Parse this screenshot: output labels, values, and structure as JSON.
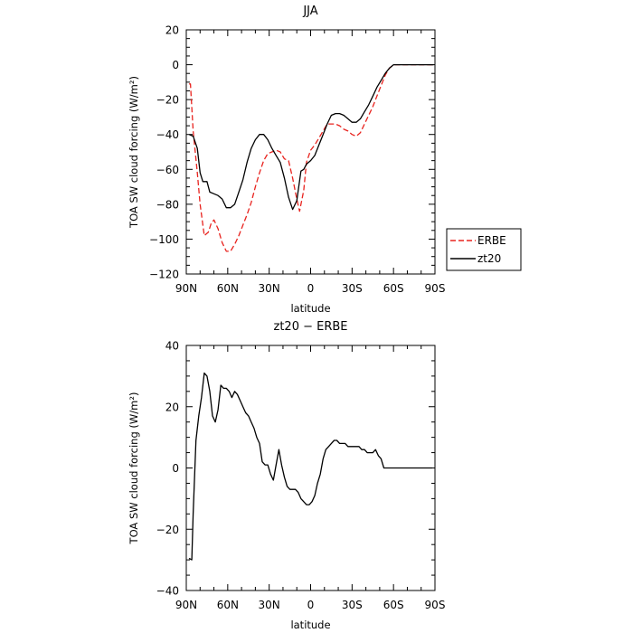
{
  "chart_data": [
    {
      "type": "line",
      "title": "JJA",
      "xlabel": "latitude",
      "ylabel": "TOA SW cloud forcing (W/m²)",
      "xlim": [
        90,
        -90
      ],
      "ylim": [
        -120,
        20
      ],
      "xticks": [
        90,
        60,
        30,
        0,
        -30,
        -60,
        -90
      ],
      "xtick_labels": [
        "90N",
        "60N",
        "30N",
        "0",
        "30S",
        "60S",
        "90S"
      ],
      "yticks": [
        -120,
        -100,
        -80,
        -60,
        -40,
        -20,
        0,
        20
      ],
      "ytick_labels": [
        "−120",
        "−100",
        "−80",
        "−60",
        "−40",
        "−20",
        "0",
        "20"
      ],
      "grid": false,
      "legend": "right",
      "series": [
        {
          "name": "ERBE",
          "color": "#e8231e",
          "dash": "dashed",
          "x": [
            88,
            87,
            85,
            82,
            80,
            77,
            74,
            72,
            70,
            67,
            64,
            61,
            58,
            55,
            52,
            49,
            46,
            43,
            40,
            37,
            34,
            31,
            28,
            25,
            22,
            19,
            16,
            13,
            10,
            8,
            5,
            3,
            0,
            -3,
            -6,
            -9,
            -12,
            -15,
            -18,
            -21,
            -24,
            -27,
            -30,
            -33,
            -36,
            -39,
            -42,
            -45,
            -48,
            -51,
            -54,
            -57,
            -60,
            -63,
            -66,
            -69,
            -72,
            -75,
            -78,
            -81,
            -84,
            -87,
            -89
          ],
          "y": [
            -11,
            -11,
            -38,
            -62,
            -80,
            -98,
            -96,
            -91,
            -89,
            -94,
            -102,
            -107,
            -107,
            -103,
            -98,
            -92,
            -86,
            -79,
            -70,
            -62,
            -55,
            -51,
            -50,
            -49,
            -50,
            -54,
            -55,
            -65,
            -77,
            -84,
            -72,
            -56,
            -49,
            -46,
            -42,
            -38,
            -34,
            -34,
            -34,
            -35,
            -37,
            -38,
            -40,
            -41,
            -39,
            -34,
            -29,
            -24,
            -18,
            -12,
            -6,
            -2,
            0,
            0,
            0,
            0,
            0,
            0,
            0,
            0,
            0,
            0,
            0
          ]
        },
        {
          "name": "zt20",
          "color": "#000000",
          "dash": "solid",
          "x": [
            88,
            85,
            82,
            80,
            78,
            75,
            73,
            70,
            67,
            64,
            61,
            58,
            55,
            52,
            49,
            46,
            43,
            40,
            37,
            34,
            31,
            28,
            25,
            22,
            19,
            16,
            13,
            10,
            7,
            5,
            3,
            0,
            -3,
            -6,
            -9,
            -12,
            -15,
            -18,
            -21,
            -24,
            -27,
            -30,
            -33,
            -36,
            -39,
            -42,
            -45,
            -48,
            -51,
            -54,
            -57,
            -60,
            -63,
            -66,
            -69,
            -72,
            -75,
            -78,
            -81,
            -84,
            -87,
            -89
          ],
          "y": [
            -40,
            -41,
            -48,
            -62,
            -67,
            -67,
            -73,
            -74,
            -75,
            -77,
            -82,
            -82,
            -80,
            -73,
            -66,
            -56,
            -48,
            -43,
            -40,
            -40,
            -43,
            -48,
            -52,
            -56,
            -65,
            -76,
            -83,
            -78,
            -61,
            -60,
            -57,
            -55,
            -52,
            -46,
            -40,
            -34,
            -29,
            -28,
            -28,
            -29,
            -31,
            -33,
            -33,
            -31,
            -27,
            -23,
            -18,
            -13,
            -9,
            -5,
            -2,
            0,
            0,
            0,
            0,
            0,
            0,
            0,
            0,
            0,
            0,
            0
          ]
        }
      ]
    },
    {
      "type": "line",
      "title": "zt20 − ERBE",
      "xlabel": "latitude",
      "ylabel": "TOA SW cloud forcing (W/m²)",
      "xlim": [
        90,
        -90
      ],
      "ylim": [
        -40,
        40
      ],
      "xticks": [
        90,
        60,
        30,
        0,
        -30,
        -60,
        -90
      ],
      "xtick_labels": [
        "90N",
        "60N",
        "30N",
        "0",
        "30S",
        "60S",
        "90S"
      ],
      "yticks": [
        -40,
        -20,
        0,
        20,
        40
      ],
      "ytick_labels": [
        "−40",
        "−20",
        "0",
        "20",
        "40"
      ],
      "grid": false,
      "series": [
        {
          "color": "#000000",
          "dash": "solid",
          "x": [
            88,
            86,
            85,
            83,
            81,
            79,
            77,
            75,
            73,
            71,
            69,
            67,
            65,
            63,
            61,
            59,
            57,
            55,
            53,
            51,
            49,
            47,
            45,
            43,
            41,
            39,
            37,
            35,
            33,
            31,
            29,
            27,
            25,
            23,
            21,
            19,
            17,
            15,
            13,
            11,
            9,
            7,
            5,
            3,
            1,
            -1,
            -3,
            -5,
            -7,
            -9,
            -11,
            -13,
            -15,
            -17,
            -19,
            -21,
            -23,
            -25,
            -27,
            -29,
            -31,
            -33,
            -35,
            -37,
            -39,
            -41,
            -43,
            -45,
            -47,
            -49,
            -51,
            -53,
            -55,
            -57,
            -59,
            -61,
            -63,
            -65,
            -67,
            -70,
            -73,
            -76,
            -79,
            -82,
            -85,
            -88
          ],
          "y": [
            -29.5,
            -30,
            -15,
            9,
            17,
            23,
            31,
            30,
            25,
            17,
            15,
            19,
            27,
            26,
            26,
            25,
            23,
            25,
            24,
            22,
            20,
            18,
            17,
            15,
            13,
            10,
            8,
            2,
            1,
            1,
            -2,
            -4,
            1,
            6,
            1,
            -3,
            -6,
            -7,
            -7,
            -7,
            -8,
            -10,
            -11,
            -12,
            -12,
            -11,
            -9,
            -5,
            -2,
            3,
            6,
            7,
            8,
            9,
            9,
            8,
            8,
            8,
            7,
            7,
            7,
            7,
            7,
            6,
            6,
            5,
            5,
            5,
            6,
            4,
            3,
            0,
            0,
            0,
            0,
            0,
            0,
            0,
            0,
            0,
            0,
            0,
            0,
            0,
            0,
            0
          ]
        }
      ]
    }
  ],
  "legend": {
    "items": [
      {
        "label": "ERBE",
        "color": "#e8231e",
        "dash": "dashed"
      },
      {
        "label": "zt20",
        "color": "#000000",
        "dash": "solid"
      }
    ]
  }
}
